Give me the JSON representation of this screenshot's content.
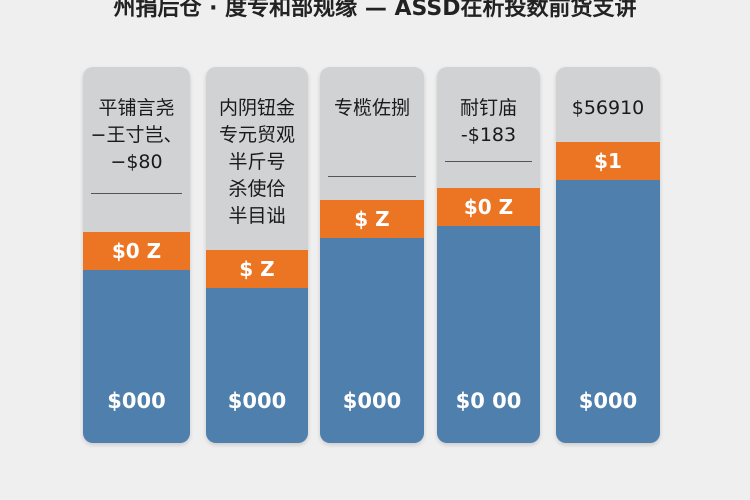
{
  "header": {
    "title": "州捐后仓 · 度专和部规缘 — ASSD在析投数前货支讲"
  },
  "columns": [
    {
      "lines": [
        "平铺言尧",
        "−王寸岂、",
        "−$80"
      ],
      "band": "$0 Z",
      "base": "$000"
    },
    {
      "lines": [
        "内阴钮金",
        "专元贸观",
        "半斤号",
        "杀使佮",
        "半目诎"
      ],
      "band": "$ Z",
      "base": "$000"
    },
    {
      "lines": [
        "专榄佐捌"
      ],
      "band": "$ Z",
      "base": "$000"
    },
    {
      "lines": [
        "耐钉庙",
        "-$183"
      ],
      "band": "$0 Z",
      "base": "$0 00"
    },
    {
      "lines": [
        "$56910"
      ],
      "band": "$1",
      "base": "$000"
    }
  ]
}
